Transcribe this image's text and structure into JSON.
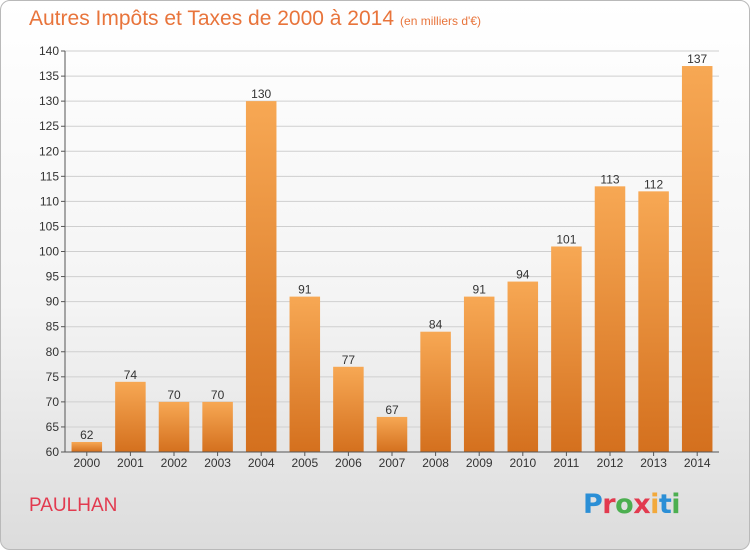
{
  "title": "Autres Impôts et Taxes de 2000 à 2014",
  "unit": "(en milliers d'€)",
  "place": "PAULHAN",
  "logo": {
    "text": "Proxiti",
    "colors": [
      "#2b8fd6",
      "#e23a4f",
      "#4caf50",
      "#e23a4f",
      "#f2a93b",
      "#2b8fd6",
      "#4caf50"
    ]
  },
  "colors": {
    "bar_light": "#f7a854",
    "bar_dark": "#d4701e",
    "accent": "#e8743b"
  },
  "chart_data": {
    "type": "bar",
    "title": "Autres Impôts et Taxes de 2000 à 2014",
    "subtitle": "(en milliers d'€)",
    "xlabel": "",
    "ylabel": "",
    "categories": [
      "2000",
      "2001",
      "2002",
      "2003",
      "2004",
      "2005",
      "2006",
      "2007",
      "2008",
      "2009",
      "2010",
      "2011",
      "2012",
      "2013",
      "2014"
    ],
    "values": [
      62,
      74,
      70,
      70,
      130,
      91,
      77,
      67,
      84,
      91,
      94,
      101,
      113,
      112,
      137
    ],
    "ylim": [
      60,
      140
    ],
    "yticks": [
      60,
      65,
      70,
      75,
      80,
      85,
      90,
      95,
      100,
      105,
      110,
      115,
      120,
      125,
      130,
      135,
      140
    ],
    "grid": true,
    "legend": "none"
  }
}
